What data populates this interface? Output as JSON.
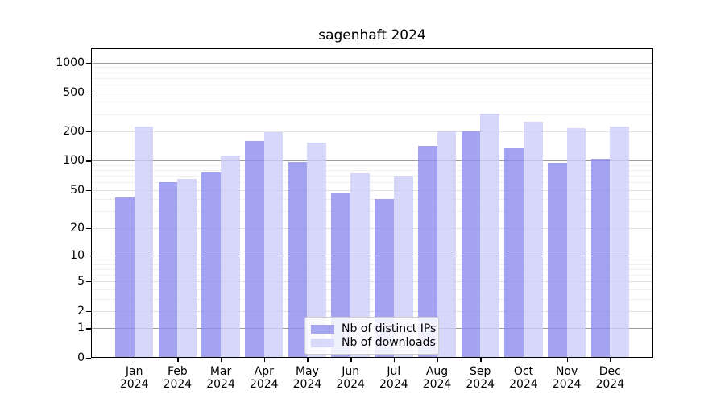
{
  "title": "sagenhaft 2024",
  "chart_data": {
    "type": "bar",
    "title": "sagenhaft 2024",
    "scale": "log(value+1)",
    "grid": "on",
    "legend_position": "lower center",
    "year": "2024",
    "months": [
      "Jan",
      "Feb",
      "Mar",
      "Apr",
      "May",
      "Jun",
      "Jul",
      "Aug",
      "Sep",
      "Oct",
      "Nov",
      "Dec"
    ],
    "categories": [
      "Jan 2024",
      "Feb 2024",
      "Mar 2024",
      "Apr 2024",
      "May 2024",
      "Jun 2024",
      "Jul 2024",
      "Aug 2024",
      "Sep 2024",
      "Oct 2024",
      "Nov 2024",
      "Dec 2024"
    ],
    "series": [
      {
        "name": "Nb of distinct IPs",
        "fill": "rgba(140,140,238,0.8)",
        "swatch": "#a6a6f0",
        "values": [
          42,
          60,
          75,
          158,
          97,
          46,
          40,
          142,
          198,
          135,
          96,
          104
        ]
      },
      {
        "name": "Nb of downloads",
        "fill": "rgba(205,205,248,0.8)",
        "swatch": "#d9d9f9",
        "values": [
          222,
          65,
          113,
          197,
          152,
          74,
          70,
          200,
          305,
          250,
          216,
          222
        ]
      }
    ],
    "yticks": [
      0,
      1,
      2,
      5,
      10,
      20,
      50,
      100,
      200,
      500,
      1000
    ],
    "minor_gridlines": [
      3,
      4,
      6,
      7,
      8,
      9,
      30,
      40,
      60,
      70,
      80,
      90,
      300,
      400,
      600,
      700,
      800,
      900
    ],
    "ylim": [
      0,
      1400
    ],
    "xlabel": "",
    "ylabel": "",
    "colors": {
      "decade_gridline": "#9c9c9c",
      "labeled_gridline": "#e2e2e2",
      "minor_gridline": "#f0f0f0",
      "axis": "#000000",
      "legend_border": "#cccccc"
    }
  }
}
